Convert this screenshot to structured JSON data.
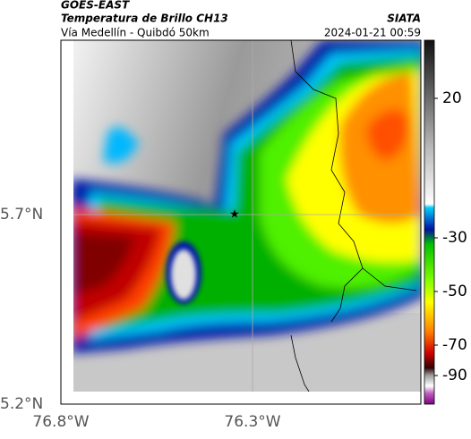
{
  "header": {
    "title": "GOES-EAST",
    "subtitle": "Temperatura de Brillo CH13",
    "region": "Vía Medellín - Quibdó 50km",
    "source": "SIATA",
    "timestamp": "2024-01-21 00:59"
  },
  "map": {
    "lat_labels": [
      "5.7°N",
      "5.2°N"
    ],
    "lon_labels": [
      "76.8°W",
      "76.3°W"
    ]
  },
  "colorbar": {
    "labels": [
      20,
      -30,
      -50,
      -70,
      -90
    ]
  }
}
